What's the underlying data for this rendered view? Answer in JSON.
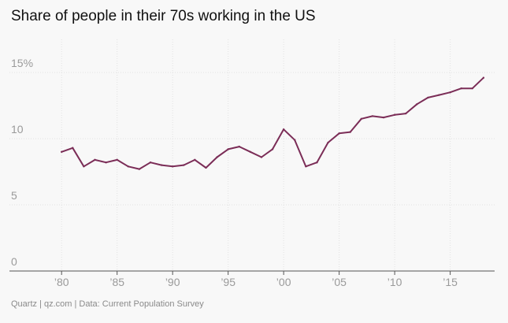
{
  "title": "Share of people in their 70s working in the US",
  "source": "Quartz | qz.com | Data: Current Population Survey",
  "colors": {
    "line": "#7b2d57",
    "grid": "#e2e2e2",
    "axis": "#555555",
    "tick_text": "#9a9a9a",
    "background": "#f8f8f8"
  },
  "chart_data": {
    "type": "line",
    "title": "Share of people in their 70s working in the US",
    "xlabel": "",
    "ylabel": "",
    "xlim": [
      1978,
      2019
    ],
    "ylim": [
      0,
      17.5
    ],
    "grid": true,
    "x_ticks": [
      {
        "value": 1980,
        "label": "’80"
      },
      {
        "value": 1985,
        "label": "’85"
      },
      {
        "value": 1990,
        "label": "’90"
      },
      {
        "value": 1995,
        "label": "’95"
      },
      {
        "value": 2000,
        "label": "’00"
      },
      {
        "value": 2005,
        "label": "’05"
      },
      {
        "value": 2010,
        "label": "’10"
      },
      {
        "value": 2015,
        "label": "’15"
      }
    ],
    "y_ticks": [
      {
        "value": 0,
        "label": "0"
      },
      {
        "value": 5,
        "label": "5"
      },
      {
        "value": 10,
        "label": "10"
      },
      {
        "value": 15,
        "label": "15%"
      }
    ],
    "x": [
      1980,
      1981,
      1982,
      1983,
      1984,
      1985,
      1986,
      1987,
      1988,
      1989,
      1990,
      1991,
      1992,
      1993,
      1994,
      1995,
      1996,
      1997,
      1998,
      1999,
      2000,
      2001,
      2002,
      2003,
      2004,
      2005,
      2006,
      2007,
      2008,
      2009,
      2010,
      2011,
      2012,
      2013,
      2014,
      2015,
      2016,
      2017,
      2018
    ],
    "series": [
      {
        "values": [
          9.0,
          9.3,
          7.9,
          8.4,
          8.2,
          8.4,
          7.9,
          7.7,
          8.2,
          8.0,
          7.9,
          8.0,
          8.4,
          7.8,
          8.6,
          9.2,
          9.4,
          9.0,
          8.6,
          9.2,
          10.7,
          9.9,
          7.9,
          8.2,
          9.7,
          10.4,
          10.5,
          11.5,
          11.7,
          11.6,
          11.8,
          11.9,
          12.6,
          13.1,
          13.3,
          13.5,
          13.8,
          13.8,
          14.6
        ]
      }
    ]
  }
}
